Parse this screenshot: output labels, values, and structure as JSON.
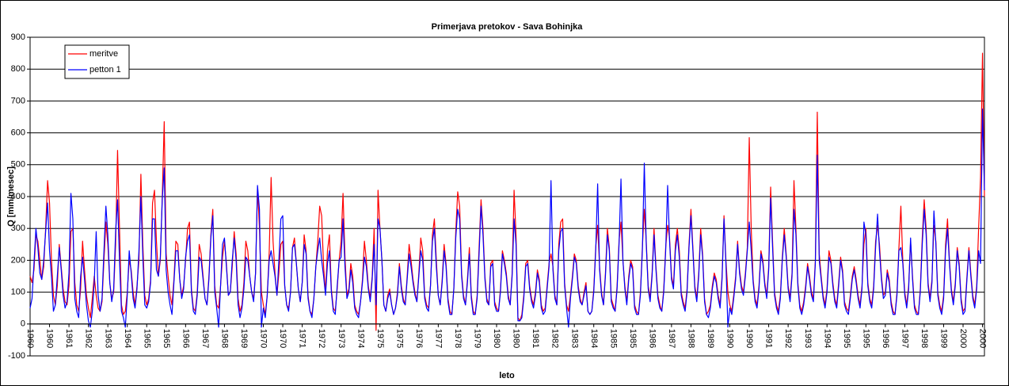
{
  "chart_data": {
    "type": "line",
    "title": "Primerjava pretokov - Sava Bohinjka",
    "x_label": "leto",
    "y_label": "Q [mm/mesec]",
    "ylim": [
      -100,
      900
    ],
    "yticks": [
      -100,
      0,
      100,
      200,
      300,
      400,
      500,
      600,
      700,
      800,
      900
    ],
    "xlim": [
      0,
      491
    ],
    "xticks": [
      {
        "value": 0,
        "label": "1960"
      },
      {
        "value": 10,
        "label": "1960"
      },
      {
        "value": 20,
        "label": "1961"
      },
      {
        "value": 30,
        "label": "1962"
      },
      {
        "value": 40,
        "label": "1963"
      },
      {
        "value": 50,
        "label": "1964"
      },
      {
        "value": 60,
        "label": "1965"
      },
      {
        "value": 70,
        "label": "1965"
      },
      {
        "value": 80,
        "label": "1966"
      },
      {
        "value": 90,
        "label": "1967"
      },
      {
        "value": 100,
        "label": "1968"
      },
      {
        "value": 110,
        "label": "1969"
      },
      {
        "value": 120,
        "label": "1970"
      },
      {
        "value": 130,
        "label": "1970"
      },
      {
        "value": 140,
        "label": "1971"
      },
      {
        "value": 150,
        "label": "1972"
      },
      {
        "value": 160,
        "label": "1973"
      },
      {
        "value": 170,
        "label": "1974"
      },
      {
        "value": 180,
        "label": "1975"
      },
      {
        "value": 190,
        "label": "1975"
      },
      {
        "value": 200,
        "label": "1976"
      },
      {
        "value": 210,
        "label": "1977"
      },
      {
        "value": 220,
        "label": "1978"
      },
      {
        "value": 230,
        "label": "1979"
      },
      {
        "value": 240,
        "label": "1980"
      },
      {
        "value": 250,
        "label": "1980"
      },
      {
        "value": 260,
        "label": "1981"
      },
      {
        "value": 270,
        "label": "1982"
      },
      {
        "value": 280,
        "label": "1983"
      },
      {
        "value": 290,
        "label": "1984"
      },
      {
        "value": 300,
        "label": "1985"
      },
      {
        "value": 310,
        "label": "1985"
      },
      {
        "value": 320,
        "label": "1986"
      },
      {
        "value": 330,
        "label": "1987"
      },
      {
        "value": 340,
        "label": "1988"
      },
      {
        "value": 350,
        "label": "1989"
      },
      {
        "value": 360,
        "label": "1990"
      },
      {
        "value": 370,
        "label": "1990"
      },
      {
        "value": 380,
        "label": "1991"
      },
      {
        "value": 390,
        "label": "1992"
      },
      {
        "value": 400,
        "label": "1993"
      },
      {
        "value": 410,
        "label": "1994"
      },
      {
        "value": 420,
        "label": "1995"
      },
      {
        "value": 430,
        "label": "1995"
      },
      {
        "value": 440,
        "label": "1996"
      },
      {
        "value": 450,
        "label": "1997"
      },
      {
        "value": 460,
        "label": "1998"
      },
      {
        "value": 470,
        "label": "1999"
      },
      {
        "value": 480,
        "label": "2000"
      },
      {
        "value": 490,
        "label": "2000"
      }
    ],
    "grid": true,
    "legend": "upper left",
    "series": [
      {
        "name": "meritve",
        "color": "#ff0000",
        "values": [
          150,
          130,
          170,
          280,
          260,
          200,
          140,
          180,
          300,
          450,
          380,
          200,
          90,
          60,
          120,
          250,
          180,
          110,
          70,
          60,
          120,
          290,
          300,
          130,
          60,
          40,
          110,
          260,
          170,
          90,
          50,
          20,
          80,
          150,
          90,
          50,
          40,
          70,
          200,
          320,
          250,
          130,
          80,
          100,
          250,
          545,
          300,
          60,
          30,
          40,
          100,
          200,
          170,
          100,
          60,
          120,
          200,
          470,
          250,
          90,
          60,
          80,
          140,
          380,
          420,
          260,
          150,
          200,
          400,
          635,
          220,
          150,
          90,
          60,
          140,
          260,
          250,
          140,
          90,
          120,
          200,
          300,
          320,
          110,
          50,
          40,
          100,
          250,
          220,
          150,
          80,
          60,
          150,
          280,
          360,
          120,
          60,
          50,
          120,
          210,
          260,
          190,
          90,
          100,
          180,
          290,
          220,
          80,
          40,
          60,
          130,
          260,
          230,
          150,
          100,
          80,
          160,
          430,
          300,
          100,
          60,
          30,
          90,
          220,
          460,
          260,
          160,
          90,
          160,
          250,
          260,
          120,
          60,
          50,
          100,
          240,
          270,
          190,
          110,
          70,
          130,
          280,
          230,
          90,
          40,
          30,
          80,
          180,
          260,
          370,
          340,
          180,
          100,
          230,
          280,
          110,
          50,
          40,
          110,
          200,
          260,
          410,
          210,
          90,
          110,
          190,
          150,
          60,
          40,
          30,
          70,
          140,
          260,
          200,
          120,
          80,
          150,
          300,
          -20,
          420,
          300,
          200,
          60,
          40,
          90,
          110,
          60,
          30,
          50,
          100,
          190,
          120,
          80,
          60,
          150,
          250,
          200,
          140,
          100,
          70,
          160,
          270,
          230,
          90,
          60,
          50,
          120,
          280,
          330,
          200,
          90,
          60,
          140,
          250,
          190,
          80,
          40,
          30,
          110,
          290,
          415,
          370,
          160,
          90,
          60,
          140,
          240,
          90,
          40,
          30,
          90,
          240,
          390,
          300,
          150,
          80,
          60,
          190,
          200,
          70,
          50,
          40,
          110,
          230,
          200,
          160,
          90,
          60,
          160,
          420,
          280,
          20,
          10,
          30,
          90,
          190,
          200,
          120,
          80,
          60,
          100,
          170,
          140,
          60,
          40,
          50,
          120,
          190,
          220,
          180,
          90,
          60,
          250,
          320,
          330,
          130,
          60,
          40,
          90,
          150,
          220,
          200,
          120,
          80,
          60,
          100,
          130,
          40,
          30,
          40,
          110,
          240,
          310,
          180,
          100,
          60,
          160,
          300,
          240,
          80,
          60,
          40,
          120,
          260,
          320,
          200,
          120,
          70,
          150,
          200,
          180,
          60,
          40,
          30,
          100,
          240,
          360,
          260,
          120,
          80,
          160,
          300,
          180,
          90,
          60,
          40,
          110,
          240,
          310,
          270,
          150,
          120,
          250,
          300,
          230,
          100,
          70,
          50,
          110,
          250,
          360,
          240,
          120,
          80,
          160,
          300,
          220,
          80,
          30,
          40,
          60,
          120,
          160,
          140,
          90,
          60,
          150,
          340,
          200,
          100,
          60,
          40,
          90,
          150,
          260,
          170,
          120,
          100,
          160,
          240,
          585,
          300,
          140,
          80,
          60,
          120,
          230,
          200,
          130,
          90,
          180,
          430,
          260,
          100,
          60,
          40,
          90,
          210,
          300,
          220,
          120,
          80,
          160,
          450,
          300,
          130,
          60,
          40,
          70,
          120,
          190,
          150,
          100,
          80,
          200,
          665,
          220,
          150,
          90,
          60,
          110,
          230,
          200,
          130,
          80,
          60,
          130,
          210,
          170,
          70,
          50,
          40,
          90,
          150,
          180,
          140,
          90,
          60,
          120,
          250,
          300,
          130,
          80,
          60,
          120,
          260,
          310,
          250,
          150,
          90,
          100,
          170,
          140,
          70,
          40,
          30,
          100,
          240,
          370,
          200,
          100,
          60,
          120,
          260,
          150,
          60,
          40,
          30,
          110,
          270,
          390,
          300,
          130,
          80,
          140,
          310,
          260,
          100,
          60,
          40,
          90,
          250,
          330,
          200,
          110,
          70,
          130,
          240,
          190,
          80,
          40,
          50,
          150,
          240,
          160,
          90,
          60,
          120,
          300,
          460,
          850,
          400
        ]
      },
      {
        "name": "petton 1",
        "color": "#0000ff",
        "values": [
          50,
          80,
          190,
          300,
          240,
          160,
          140,
          200,
          290,
          380,
          230,
          150,
          40,
          60,
          150,
          240,
          170,
          90,
          50,
          70,
          160,
          410,
          330,
          80,
          40,
          20,
          150,
          210,
          140,
          60,
          10,
          -10,
          40,
          130,
          290,
          90,
          40,
          80,
          230,
          370,
          280,
          130,
          70,
          110,
          290,
          390,
          200,
          40,
          20,
          -10,
          90,
          230,
          160,
          80,
          50,
          110,
          230,
          400,
          210,
          60,
          50,
          70,
          130,
          330,
          330,
          170,
          150,
          210,
          390,
          490,
          170,
          100,
          60,
          30,
          130,
          230,
          230,
          140,
          80,
          110,
          210,
          260,
          280,
          100,
          40,
          30,
          90,
          210,
          200,
          140,
          80,
          60,
          140,
          270,
          340,
          100,
          50,
          -10,
          120,
          250,
          270,
          180,
          90,
          100,
          200,
          270,
          200,
          60,
          20,
          50,
          110,
          210,
          200,
          150,
          100,
          70,
          160,
          435,
          360,
          -10,
          50,
          20,
          90,
          200,
          230,
          190,
          150,
          90,
          200,
          330,
          340,
          120,
          60,
          40,
          100,
          240,
          250,
          190,
          110,
          70,
          130,
          250,
          220,
          80,
          40,
          20,
          80,
          180,
          230,
          270,
          200,
          150,
          90,
          190,
          230,
          100,
          40,
          30,
          120,
          200,
          210,
          330,
          180,
          80,
          100,
          170,
          130,
          50,
          30,
          20,
          70,
          130,
          210,
          180,
          110,
          70,
          140,
          250,
          60,
          330,
          300,
          200,
          60,
          40,
          80,
          100,
          60,
          30,
          50,
          90,
          180,
          110,
          70,
          60,
          140,
          220,
          180,
          130,
          90,
          70,
          150,
          230,
          200,
          80,
          50,
          40,
          120,
          260,
          300,
          180,
          90,
          60,
          130,
          230,
          180,
          70,
          30,
          30,
          110,
          270,
          360,
          330,
          150,
          80,
          60,
          130,
          220,
          80,
          30,
          30,
          80,
          220,
          370,
          280,
          140,
          70,
          60,
          180,
          190,
          60,
          40,
          40,
          100,
          220,
          190,
          150,
          80,
          60,
          150,
          330,
          250,
          10,
          10,
          20,
          80,
          180,
          190,
          110,
          70,
          50,
          90,
          160,
          130,
          50,
          30,
          40,
          110,
          180,
          450,
          170,
          80,
          60,
          230,
          290,
          300,
          120,
          50,
          -10,
          80,
          140,
          210,
          190,
          110,
          70,
          60,
          90,
          120,
          40,
          30,
          40,
          100,
          230,
          440,
          170,
          90,
          60,
          150,
          280,
          230,
          70,
          50,
          40,
          110,
          250,
          455,
          200,
          110,
          60,
          140,
          190,
          170,
          50,
          30,
          30,
          90,
          230,
          505,
          250,
          110,
          70,
          150,
          280,
          170,
          80,
          50,
          40,
          100,
          230,
          435,
          260,
          140,
          110,
          230,
          280,
          210,
          90,
          60,
          40,
          100,
          240,
          340,
          230,
          110,
          70,
          150,
          280,
          210,
          70,
          30,
          20,
          50,
          110,
          150,
          130,
          80,
          50,
          140,
          330,
          190,
          -10,
          50,
          30,
          80,
          140,
          250,
          160,
          110,
          90,
          150,
          230,
          320,
          230,
          130,
          70,
          50,
          110,
          220,
          190,
          120,
          80,
          170,
          395,
          240,
          90,
          50,
          30,
          80,
          200,
          280,
          210,
          110,
          70,
          150,
          360,
          280,
          120,
          50,
          30,
          60,
          110,
          180,
          140,
          90,
          70,
          190,
          530,
          200,
          140,
          80,
          50,
          100,
          210,
          190,
          120,
          70,
          50,
          120,
          200,
          160,
          60,
          40,
          30,
          80,
          140,
          170,
          130,
          80,
          50,
          110,
          320,
          280,
          120,
          70,
          50,
          110,
          240,
          345,
          230,
          140,
          80,
          90,
          160,
          130,
          60,
          30,
          30,
          90,
          230,
          240,
          190,
          90,
          50,
          110,
          270,
          140,
          50,
          30,
          30,
          100,
          250,
          360,
          280,
          120,
          70,
          130,
          355,
          250,
          90,
          50,
          30,
          80,
          230,
          300,
          190,
          100,
          60,
          120,
          230,
          180,
          70,
          30,
          40,
          140,
          230,
          150,
          80,
          50,
          110,
          230,
          190,
          675,
          420
        ]
      }
    ]
  }
}
